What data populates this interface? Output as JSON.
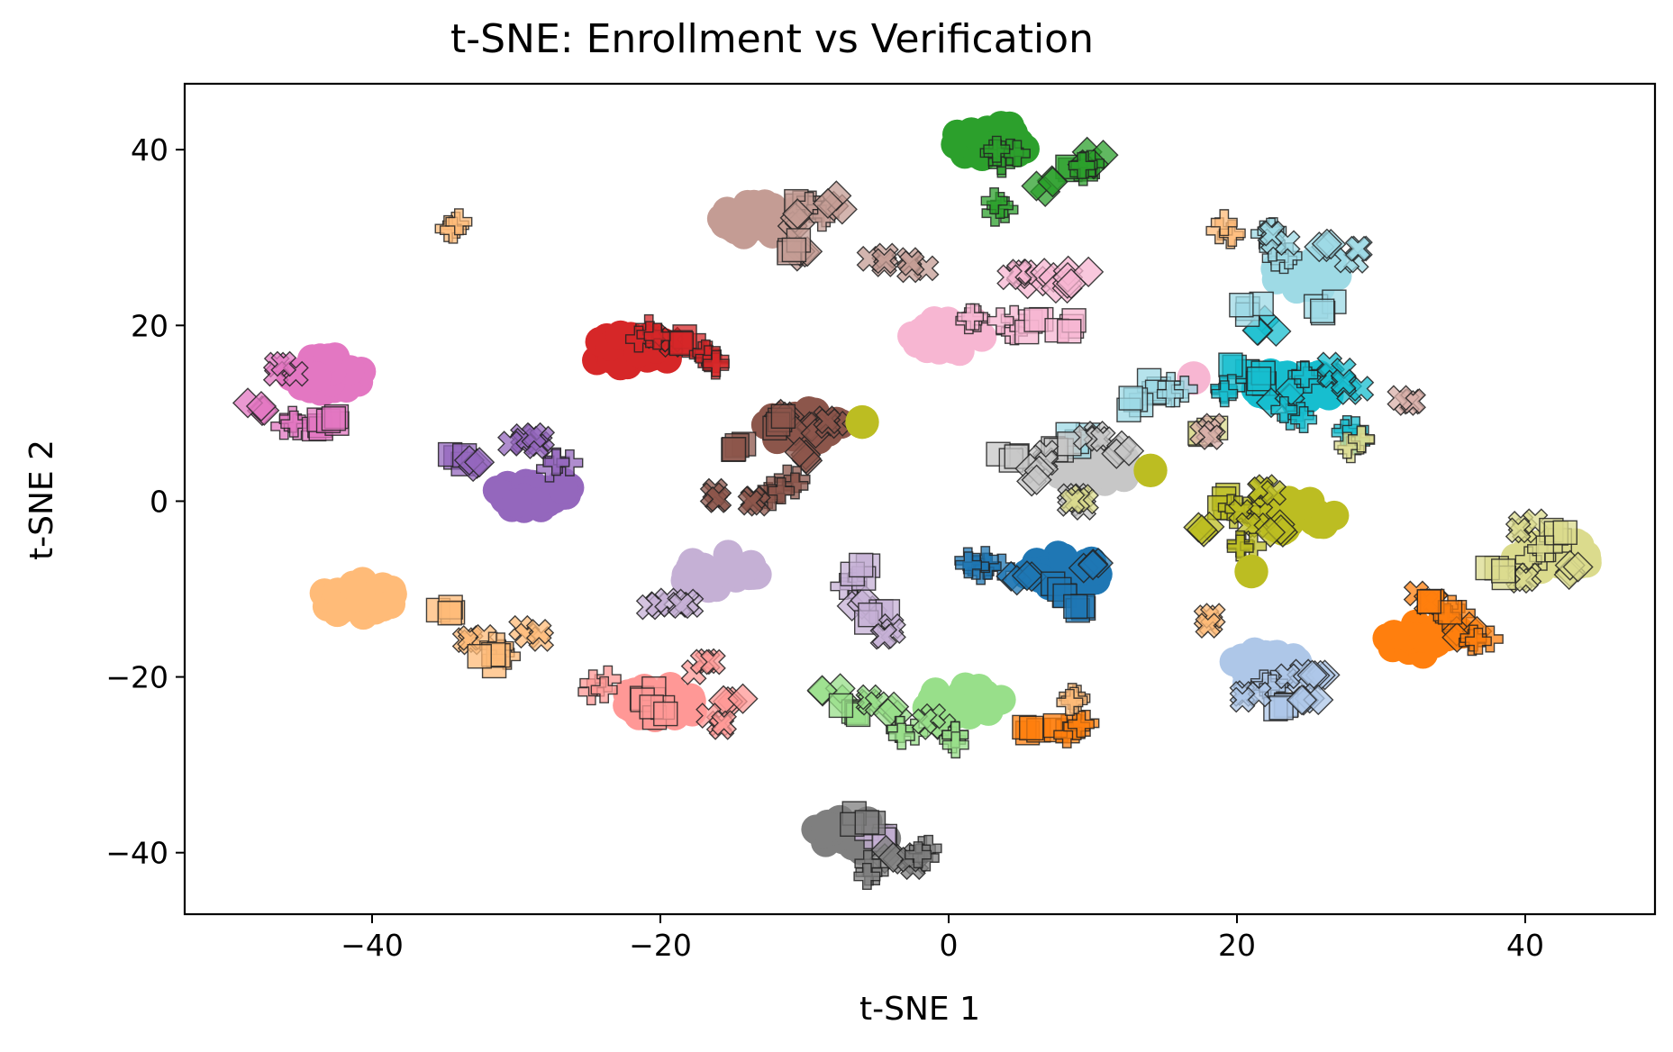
{
  "chart_data": {
    "type": "scatter",
    "title": "t-SNE: Enrollment vs Verification",
    "xlabel": "t-SNE 1",
    "ylabel": "t-SNE 2",
    "xlim": [
      -53,
      49
    ],
    "ylim": [
      -47,
      47.5
    ],
    "xticks": [
      -40,
      -20,
      0,
      20,
      40
    ],
    "yticks": [
      -40,
      -20,
      0,
      20,
      40
    ],
    "tick_labels_x": [
      "−40",
      "−20",
      "0",
      "20",
      "40"
    ],
    "tick_labels_y": [
      "−40",
      "−20",
      "0",
      "20",
      "40"
    ],
    "grid": false,
    "legend": "none",
    "marker_legend": {
      "enrollment": "circle (no edge)",
      "verification": [
        "square",
        "diamond",
        "plus",
        "x"
      ]
    },
    "clusters": [
      {
        "color": "#2ca02c",
        "enroll": [
          3,
          41
        ],
        "verify": [
          [
            3,
            39,
            "plus"
          ],
          [
            4,
            40,
            "plus"
          ],
          [
            9,
            38,
            "square"
          ],
          [
            10,
            39,
            "diamond"
          ],
          [
            10,
            38,
            "plus"
          ],
          [
            6.5,
            36,
            "diamond"
          ],
          [
            3.5,
            33.5,
            "plus"
          ]
        ]
      },
      {
        "color": "#c49c94",
        "enroll": [
          -13,
          32
        ],
        "verify": [
          [
            -10,
            34,
            "square"
          ],
          [
            -9,
            33,
            "plus"
          ],
          [
            -8,
            34,
            "diamond"
          ],
          [
            -11,
            32,
            "diamond"
          ],
          [
            -10,
            28,
            "diamond"
          ],
          [
            -11,
            29,
            "square"
          ],
          [
            -5,
            27.5,
            "x"
          ],
          [
            -2,
            27,
            "x"
          ]
        ]
      },
      {
        "color": "#f7b6d2",
        "enroll": [
          0,
          19
        ],
        "verify": [
          [
            6,
            25.5,
            "diamond"
          ],
          [
            8,
            25,
            "diamond"
          ],
          [
            9,
            25.5,
            "diamond"
          ],
          [
            5,
            26,
            "x"
          ],
          [
            2,
            21,
            "plus"
          ],
          [
            4,
            20,
            "plus"
          ],
          [
            6,
            20,
            "square"
          ],
          [
            8,
            20,
            "square"
          ],
          [
            17,
            14,
            "circle"
          ]
        ]
      },
      {
        "color": "#d62728",
        "enroll": [
          -22,
          17
        ],
        "verify": [
          [
            -20,
            18,
            "x"
          ],
          [
            -18,
            18,
            "square"
          ],
          [
            -17,
            17,
            "plus"
          ],
          [
            -16,
            16,
            "plus"
          ],
          [
            -21,
            19,
            "plus"
          ]
        ]
      },
      {
        "color": "#e377c2",
        "enroll": [
          -43,
          14.5
        ],
        "verify": [
          [
            -46,
            15,
            "x"
          ],
          [
            -48,
            11,
            "diamond"
          ],
          [
            -46,
            9,
            "plus"
          ],
          [
            -44,
            9,
            "square"
          ],
          [
            -43,
            9,
            "square"
          ]
        ]
      },
      {
        "color": "#9467bd",
        "enroll": [
          -29,
          1
        ],
        "verify": [
          [
            -34,
            5,
            "square"
          ],
          [
            -33,
            4,
            "diamond"
          ],
          [
            -30,
            7,
            "x"
          ],
          [
            -29,
            7,
            "x"
          ],
          [
            -27,
            4,
            "plus"
          ]
        ]
      },
      {
        "color": "#8c564b",
        "enroll": [
          -10,
          8.5
        ],
        "verify": [
          [
            -11,
            10,
            "diamond"
          ],
          [
            -10,
            8,
            "diamond"
          ],
          [
            -12,
            9,
            "square"
          ],
          [
            -15,
            6,
            "square"
          ],
          [
            -10,
            5,
            "diamond"
          ],
          [
            -11,
            2,
            "plus"
          ],
          [
            -12,
            1,
            "plus"
          ],
          [
            -16,
            0.5,
            "x"
          ],
          [
            -14,
            0.5,
            "x"
          ],
          [
            -8,
            9,
            "x"
          ]
        ]
      },
      {
        "color": "#17becf",
        "enroll": [
          24,
          13
        ],
        "verify": [
          [
            20,
            15,
            "square"
          ],
          [
            22,
            14,
            "square"
          ],
          [
            23,
            12,
            "diamond"
          ],
          [
            25,
            14,
            "plus"
          ],
          [
            27,
            15,
            "x"
          ],
          [
            28,
            13,
            "x"
          ],
          [
            24,
            10,
            "plus"
          ],
          [
            19,
            13,
            "plus"
          ],
          [
            22,
            20,
            "diamond"
          ],
          [
            28,
            7.5,
            "plus"
          ]
        ]
      },
      {
        "color": "#9edae5",
        "enroll": [
          25,
          26
        ],
        "verify": [
          [
            22,
            30,
            "plus"
          ],
          [
            23,
            28,
            "plus"
          ],
          [
            26,
            29,
            "diamond"
          ],
          [
            28,
            28,
            "x"
          ],
          [
            21,
            22,
            "square"
          ],
          [
            26,
            22,
            "square"
          ],
          [
            23,
            30,
            "x"
          ],
          [
            14,
            13,
            "square"
          ],
          [
            13,
            11,
            "square"
          ],
          [
            16,
            13,
            "plus"
          ],
          [
            9,
            7,
            "square"
          ]
        ]
      },
      {
        "color": "#c7c7c7",
        "enroll": [
          10,
          4
        ],
        "verify": [
          [
            8,
            6,
            "square"
          ],
          [
            10,
            7,
            "x"
          ],
          [
            6,
            5,
            "x"
          ],
          [
            12,
            6,
            "diamond"
          ],
          [
            4,
            5,
            "square"
          ],
          [
            6,
            3,
            "diamond"
          ],
          [
            9,
            0,
            "x"
          ]
        ]
      },
      {
        "color": "#bcbd22",
        "enroll": [
          24,
          -1.5
        ],
        "verify": [
          [
            19,
            0,
            "square"
          ],
          [
            20,
            -1,
            "plus"
          ],
          [
            21,
            -2,
            "x"
          ],
          [
            23,
            -3,
            "diamond"
          ],
          [
            22,
            1,
            "x"
          ],
          [
            18,
            -3,
            "diamond"
          ],
          [
            21,
            -5,
            "plus"
          ],
          [
            14,
            3.5,
            "circle"
          ],
          [
            21,
            -8,
            "circle"
          ],
          [
            -6,
            9,
            "circle"
          ]
        ]
      },
      {
        "color": "#dbdb8d",
        "enroll": [
          42,
          -6
        ],
        "verify": [
          [
            40,
            -3,
            "x"
          ],
          [
            42,
            -4,
            "square"
          ],
          [
            41,
            -6,
            "plus"
          ],
          [
            43,
            -8,
            "diamond"
          ],
          [
            40,
            -9,
            "x"
          ],
          [
            38,
            -8,
            "square"
          ],
          [
            18,
            8,
            "square"
          ],
          [
            9,
            0,
            "x"
          ],
          [
            28,
            6.5,
            "plus"
          ]
        ]
      },
      {
        "color": "#1f77b4",
        "enroll": [
          8,
          -8
        ],
        "verify": [
          [
            3,
            -8,
            "plus"
          ],
          [
            5,
            -9,
            "diamond"
          ],
          [
            8,
            -10,
            "square"
          ],
          [
            9,
            -12,
            "square"
          ],
          [
            10,
            -7,
            "diamond"
          ],
          [
            2,
            -7,
            "plus"
          ]
        ]
      },
      {
        "color": "#ff7f0e",
        "enroll": [
          33,
          -15.5
        ],
        "verify": [
          [
            33,
            -11,
            "x"
          ],
          [
            35,
            -13,
            "plus"
          ],
          [
            36,
            -15,
            "diamond"
          ],
          [
            37,
            -16,
            "plus"
          ],
          [
            34,
            -12,
            "square"
          ],
          [
            6,
            -26,
            "square"
          ],
          [
            8,
            -26,
            "square"
          ],
          [
            9,
            -26,
            "plus"
          ]
        ]
      },
      {
        "color": "#aec7e8",
        "enroll": [
          22,
          -19
        ],
        "verify": [
          [
            22,
            -21,
            "plus"
          ],
          [
            24,
            -20,
            "x"
          ],
          [
            26,
            -20,
            "diamond"
          ],
          [
            23,
            -23,
            "square"
          ],
          [
            25,
            -22,
            "diamond"
          ],
          [
            21,
            -22,
            "x"
          ]
        ]
      },
      {
        "color": "#ffbb78",
        "enroll": [
          -41,
          -11
        ],
        "verify": [
          [
            -35,
            -12,
            "square"
          ],
          [
            -33,
            -16,
            "x"
          ],
          [
            -31,
            -17,
            "plus"
          ],
          [
            -29,
            -15,
            "x"
          ],
          [
            -32,
            -18,
            "square"
          ],
          [
            8.5,
            -23,
            "plus"
          ],
          [
            18.5,
            -13.5,
            "x"
          ],
          [
            -34,
            31,
            "plus"
          ],
          [
            19.5,
            31,
            "plus"
          ]
        ]
      },
      {
        "color": "#c5b0d5",
        "enroll": [
          -16,
          -8
        ],
        "verify": [
          [
            -20,
            -12,
            "x"
          ],
          [
            -18,
            -12,
            "x"
          ],
          [
            -7,
            -10,
            "plus"
          ],
          [
            -6,
            -12,
            "diamond"
          ],
          [
            -5,
            -13,
            "square"
          ],
          [
            -4,
            -15,
            "x"
          ],
          [
            -6,
            -8,
            "square"
          ],
          [
            -5,
            -38,
            "square"
          ]
        ]
      },
      {
        "color": "#ff9896",
        "enroll": [
          -20,
          -23
        ],
        "verify": [
          [
            -24,
            -21,
            "plus"
          ],
          [
            -21,
            -22,
            "square"
          ],
          [
            -20,
            -24,
            "square"
          ],
          [
            -17,
            -19,
            "x"
          ],
          [
            -15,
            -23,
            "diamond"
          ],
          [
            -16,
            -25,
            "x"
          ]
        ]
      },
      {
        "color": "#98df8a",
        "enroll": [
          1,
          -23
        ],
        "verify": [
          [
            -8,
            -22,
            "diamond"
          ],
          [
            -7,
            -24,
            "square"
          ],
          [
            -5,
            -23,
            "x"
          ],
          [
            -4,
            -24,
            "diamond"
          ],
          [
            -3,
            -26,
            "plus"
          ],
          [
            -1,
            -25,
            "x"
          ],
          [
            0,
            -27,
            "plus"
          ]
        ]
      },
      {
        "color": "#7f7f7f",
        "enroll": [
          -7,
          -38
        ],
        "verify": [
          [
            -6,
            -36,
            "square"
          ],
          [
            -4,
            -40,
            "diamond"
          ],
          [
            -3,
            -41,
            "x"
          ],
          [
            -5,
            -42,
            "plus"
          ],
          [
            -2,
            -40,
            "plus"
          ]
        ]
      },
      {
        "color": "#d9b0aa",
        "enroll": null,
        "verify": [
          [
            31.5,
            11,
            "x"
          ],
          [
            18,
            8,
            "x"
          ]
        ]
      }
    ]
  }
}
